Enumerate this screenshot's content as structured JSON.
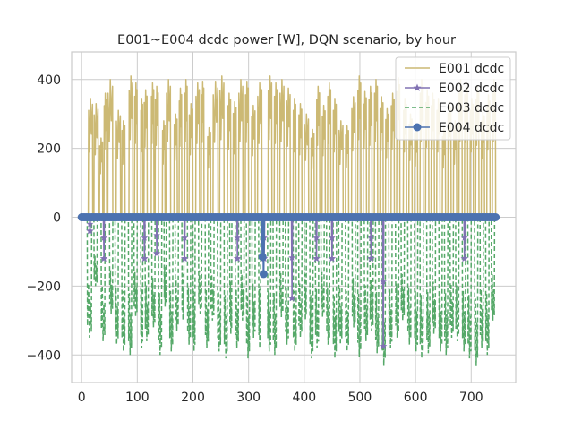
{
  "chart_data": {
    "type": "line",
    "title": "E001~E004 dcdc power [W], DQN scenario, by hour",
    "xlabel": "",
    "ylabel": "",
    "xlim": [
      -18,
      780
    ],
    "ylim": [
      -480,
      480
    ],
    "x_ticks": [
      0,
      100,
      200,
      300,
      400,
      500,
      600,
      700
    ],
    "y_ticks": [
      -400,
      -200,
      0,
      200,
      400
    ],
    "x_tick_labels": [
      "0",
      "100",
      "200",
      "300",
      "400",
      "500",
      "600",
      "700"
    ],
    "y_tick_labels": [
      "−400",
      "−200",
      "0",
      "200",
      "400"
    ],
    "grid": true,
    "legend_position": "top-right",
    "colors": {
      "E001": "#ccb974",
      "E002": "#8172b3",
      "E003": "#55a868",
      "E004": "#4c72b0",
      "grid": "#cccccc",
      "spine": "#cccccc"
    },
    "series": [
      {
        "name": "E001 dcdc",
        "style": "solid",
        "marker": "none",
        "segments": [
          [
            0,
            10,
            0
          ],
          [
            12,
            20,
            345
          ],
          [
            22,
            30,
            330
          ],
          [
            32,
            38,
            230
          ],
          [
            40,
            45,
            360
          ],
          [
            47,
            56,
            400
          ],
          [
            62,
            70,
            310
          ],
          [
            72,
            78,
            280
          ],
          [
            85,
            92,
            410
          ],
          [
            95,
            100,
            390
          ],
          [
            106,
            110,
            345
          ],
          [
            112,
            118,
            370
          ],
          [
            125,
            130,
            390
          ],
          [
            132,
            138,
            380
          ],
          [
            145,
            150,
            280
          ],
          [
            152,
            160,
            400
          ],
          [
            166,
            172,
            300
          ],
          [
            175,
            180,
            375
          ],
          [
            185,
            190,
            400
          ],
          [
            193,
            200,
            330
          ],
          [
            205,
            212,
            390
          ],
          [
            215,
            220,
            395
          ],
          [
            226,
            232,
            260
          ],
          [
            236,
            245,
            395
          ],
          [
            248,
            256,
            410
          ],
          [
            262,
            268,
            360
          ],
          [
            272,
            278,
            335
          ],
          [
            282,
            290,
            400
          ],
          [
            294,
            300,
            395
          ],
          [
            305,
            312,
            325
          ],
          [
            316,
            324,
            390
          ],
          [
            335,
            342,
            410
          ],
          [
            346,
            352,
            390
          ],
          [
            356,
            364,
            400
          ],
          [
            368,
            375,
            375
          ],
          [
            380,
            385,
            345
          ],
          [
            390,
            396,
            330
          ],
          [
            400,
            408,
            300
          ],
          [
            412,
            418,
            255
          ],
          [
            422,
            428,
            380
          ],
          [
            432,
            438,
            325
          ],
          [
            442,
            448,
            390
          ],
          [
            452,
            458,
            345
          ],
          [
            462,
            470,
            280
          ],
          [
            474,
            480,
            265
          ],
          [
            485,
            492,
            350
          ],
          [
            496,
            502,
            410
          ],
          [
            506,
            512,
            365
          ],
          [
            516,
            522,
            380
          ],
          [
            526,
            532,
            400
          ],
          [
            536,
            542,
            350
          ],
          [
            546,
            552,
            315
          ],
          [
            556,
            562,
            360
          ],
          [
            566,
            572,
            405
          ],
          [
            578,
            584,
            345
          ],
          [
            588,
            594,
            300
          ],
          [
            598,
            604,
            270
          ],
          [
            608,
            614,
            400
          ],
          [
            618,
            624,
            370
          ],
          [
            628,
            634,
            360
          ],
          [
            638,
            644,
            345
          ],
          [
            648,
            654,
            260
          ],
          [
            658,
            664,
            335
          ],
          [
            668,
            674,
            280
          ],
          [
            678,
            684,
            400
          ],
          [
            688,
            694,
            395
          ],
          [
            698,
            704,
            345
          ],
          [
            708,
            714,
            380
          ],
          [
            718,
            724,
            310
          ],
          [
            728,
            734,
            355
          ],
          [
            738,
            744,
            400
          ]
        ]
      },
      {
        "name": "E002 dcdc",
        "style": "solid",
        "marker": "star",
        "dips": [
          [
            15,
            -40
          ],
          [
            40,
            -120
          ],
          [
            113,
            -120
          ],
          [
            135,
            -105
          ],
          [
            185,
            -120
          ],
          [
            280,
            -120
          ],
          [
            328,
            -120
          ],
          [
            378,
            -235
          ],
          [
            422,
            -120
          ],
          [
            450,
            -120
          ],
          [
            520,
            -120
          ],
          [
            542,
            -375
          ],
          [
            688,
            -120
          ]
        ]
      },
      {
        "name": "E003 dcdc",
        "style": "dashed",
        "marker": "none",
        "segments": [
          [
            10,
            18,
            -350
          ],
          [
            22,
            28,
            -200
          ],
          [
            35,
            42,
            -360
          ],
          [
            50,
            56,
            -280
          ],
          [
            60,
            66,
            -370
          ],
          [
            72,
            78,
            -390
          ],
          [
            84,
            90,
            -400
          ],
          [
            94,
            100,
            -290
          ],
          [
            106,
            110,
            -380
          ],
          [
            114,
            120,
            -360
          ],
          [
            126,
            132,
            -320
          ],
          [
            138,
            144,
            -400
          ],
          [
            148,
            152,
            -260
          ],
          [
            158,
            164,
            -390
          ],
          [
            168,
            174,
            -330
          ],
          [
            180,
            184,
            -300
          ],
          [
            190,
            196,
            -370
          ],
          [
            200,
            204,
            -390
          ],
          [
            210,
            216,
            -280
          ],
          [
            222,
            228,
            -380
          ],
          [
            232,
            238,
            -300
          ],
          [
            244,
            250,
            -390
          ],
          [
            256,
            262,
            -410
          ],
          [
            266,
            270,
            -340
          ],
          [
            276,
            282,
            -380
          ],
          [
            286,
            292,
            -300
          ],
          [
            296,
            302,
            -410
          ],
          [
            306,
            312,
            -350
          ],
          [
            318,
            322,
            -380
          ],
          [
            334,
            340,
            -390
          ],
          [
            344,
            350,
            -400
          ],
          [
            356,
            362,
            -290
          ],
          [
            366,
            372,
            -370
          ],
          [
            380,
            386,
            -390
          ],
          [
            390,
            396,
            -350
          ],
          [
            400,
            404,
            -300
          ],
          [
            410,
            416,
            -410
          ],
          [
            420,
            426,
            -380
          ],
          [
            430,
            436,
            -290
          ],
          [
            440,
            446,
            -370
          ],
          [
            452,
            458,
            -410
          ],
          [
            462,
            468,
            -370
          ],
          [
            474,
            480,
            -390
          ],
          [
            486,
            492,
            -320
          ],
          [
            496,
            502,
            -405
          ],
          [
            508,
            514,
            -360
          ],
          [
            518,
            524,
            -330
          ],
          [
            528,
            534,
            -395
          ],
          [
            540,
            546,
            -430
          ],
          [
            552,
            558,
            -380
          ],
          [
            564,
            570,
            -350
          ],
          [
            574,
            580,
            -300
          ],
          [
            586,
            592,
            -370
          ],
          [
            598,
            604,
            -390
          ],
          [
            608,
            614,
            -410
          ],
          [
            620,
            626,
            -395
          ],
          [
            630,
            636,
            -340
          ],
          [
            642,
            648,
            -390
          ],
          [
            652,
            658,
            -400
          ],
          [
            662,
            668,
            -350
          ],
          [
            672,
            678,
            -360
          ],
          [
            684,
            690,
            -390
          ],
          [
            694,
            700,
            -410
          ],
          [
            706,
            712,
            -430
          ],
          [
            716,
            722,
            -380
          ],
          [
            726,
            732,
            -400
          ],
          [
            736,
            742,
            -300
          ]
        ]
      },
      {
        "name": "E004 dcdc",
        "style": "solid",
        "marker": "circle",
        "x_start": 0,
        "x_end": 744,
        "x_step": 3,
        "dips": [
          [
            325,
            -115
          ],
          [
            327,
            -165
          ]
        ]
      }
    ],
    "legend": [
      "E001 dcdc",
      "E002 dcdc",
      "E003 dcdc",
      "E004 dcdc"
    ]
  }
}
